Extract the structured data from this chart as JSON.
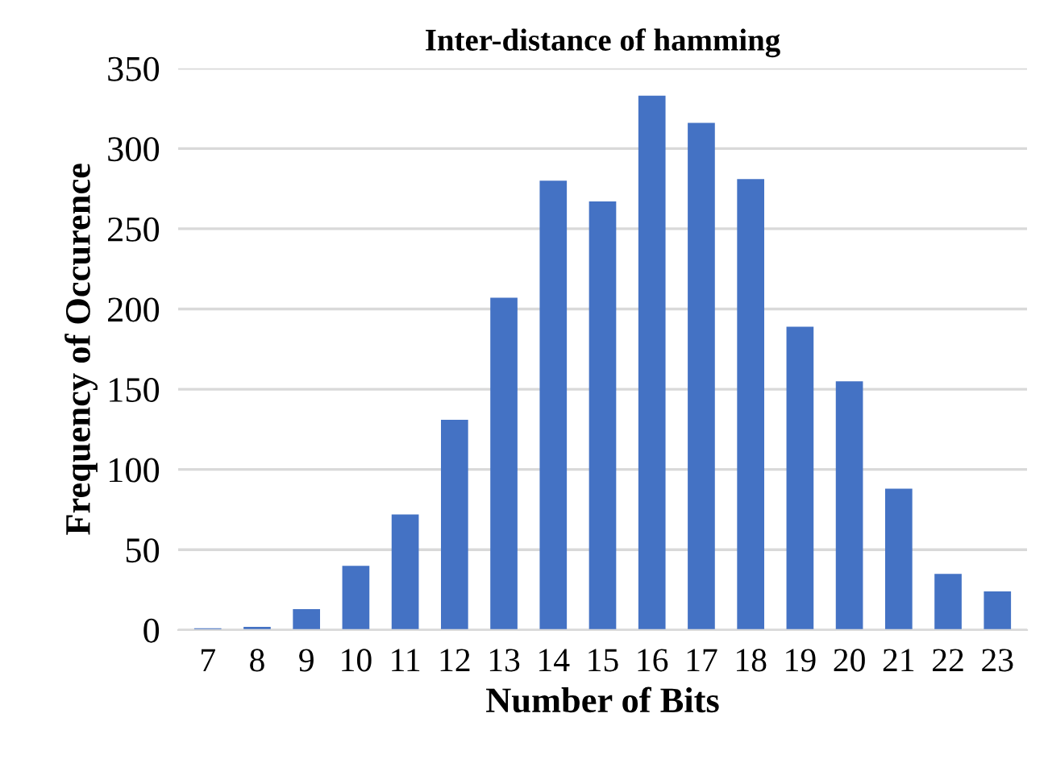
{
  "chart_data": {
    "type": "bar",
    "title": "Inter-distance of hamming",
    "xlabel": "Number of Bits",
    "ylabel": "Frequency of Occurence",
    "categories": [
      "7",
      "8",
      "9",
      "10",
      "11",
      "12",
      "13",
      "14",
      "15",
      "16",
      "17",
      "18",
      "19",
      "20",
      "21",
      "22",
      "23"
    ],
    "values": [
      1,
      2,
      13,
      40,
      72,
      131,
      207,
      280,
      267,
      333,
      316,
      281,
      189,
      155,
      88,
      35,
      24
    ],
    "color": "#4472c4",
    "ylim": [
      0,
      350
    ],
    "yticks": [
      0,
      50,
      100,
      150,
      200,
      250,
      300,
      350
    ],
    "grid": "y"
  }
}
